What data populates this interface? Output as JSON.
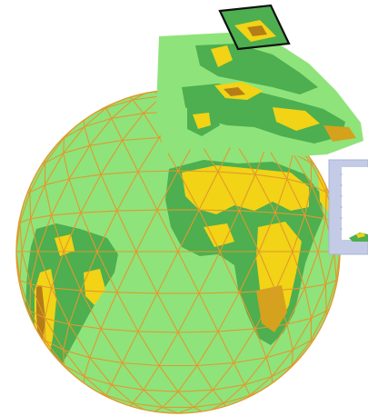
{
  "figure": {
    "description_free": true,
    "colors": {
      "background": "#ffffff",
      "grid_line": "#e09a2c",
      "ocean_base": "#8fe37b",
      "land_low": "#4daf4f",
      "land_mid": "#f2d316",
      "land_high": "#d4a21c",
      "land_peak": "#b57d18",
      "highlight_box": "#111111",
      "inset_frame": "#a9b3d6"
    },
    "icons": [
      "globe-mesh",
      "regional-map-panel",
      "highlight-box",
      "inset-plot"
    ],
    "inset": {
      "visible_text": ""
    }
  }
}
